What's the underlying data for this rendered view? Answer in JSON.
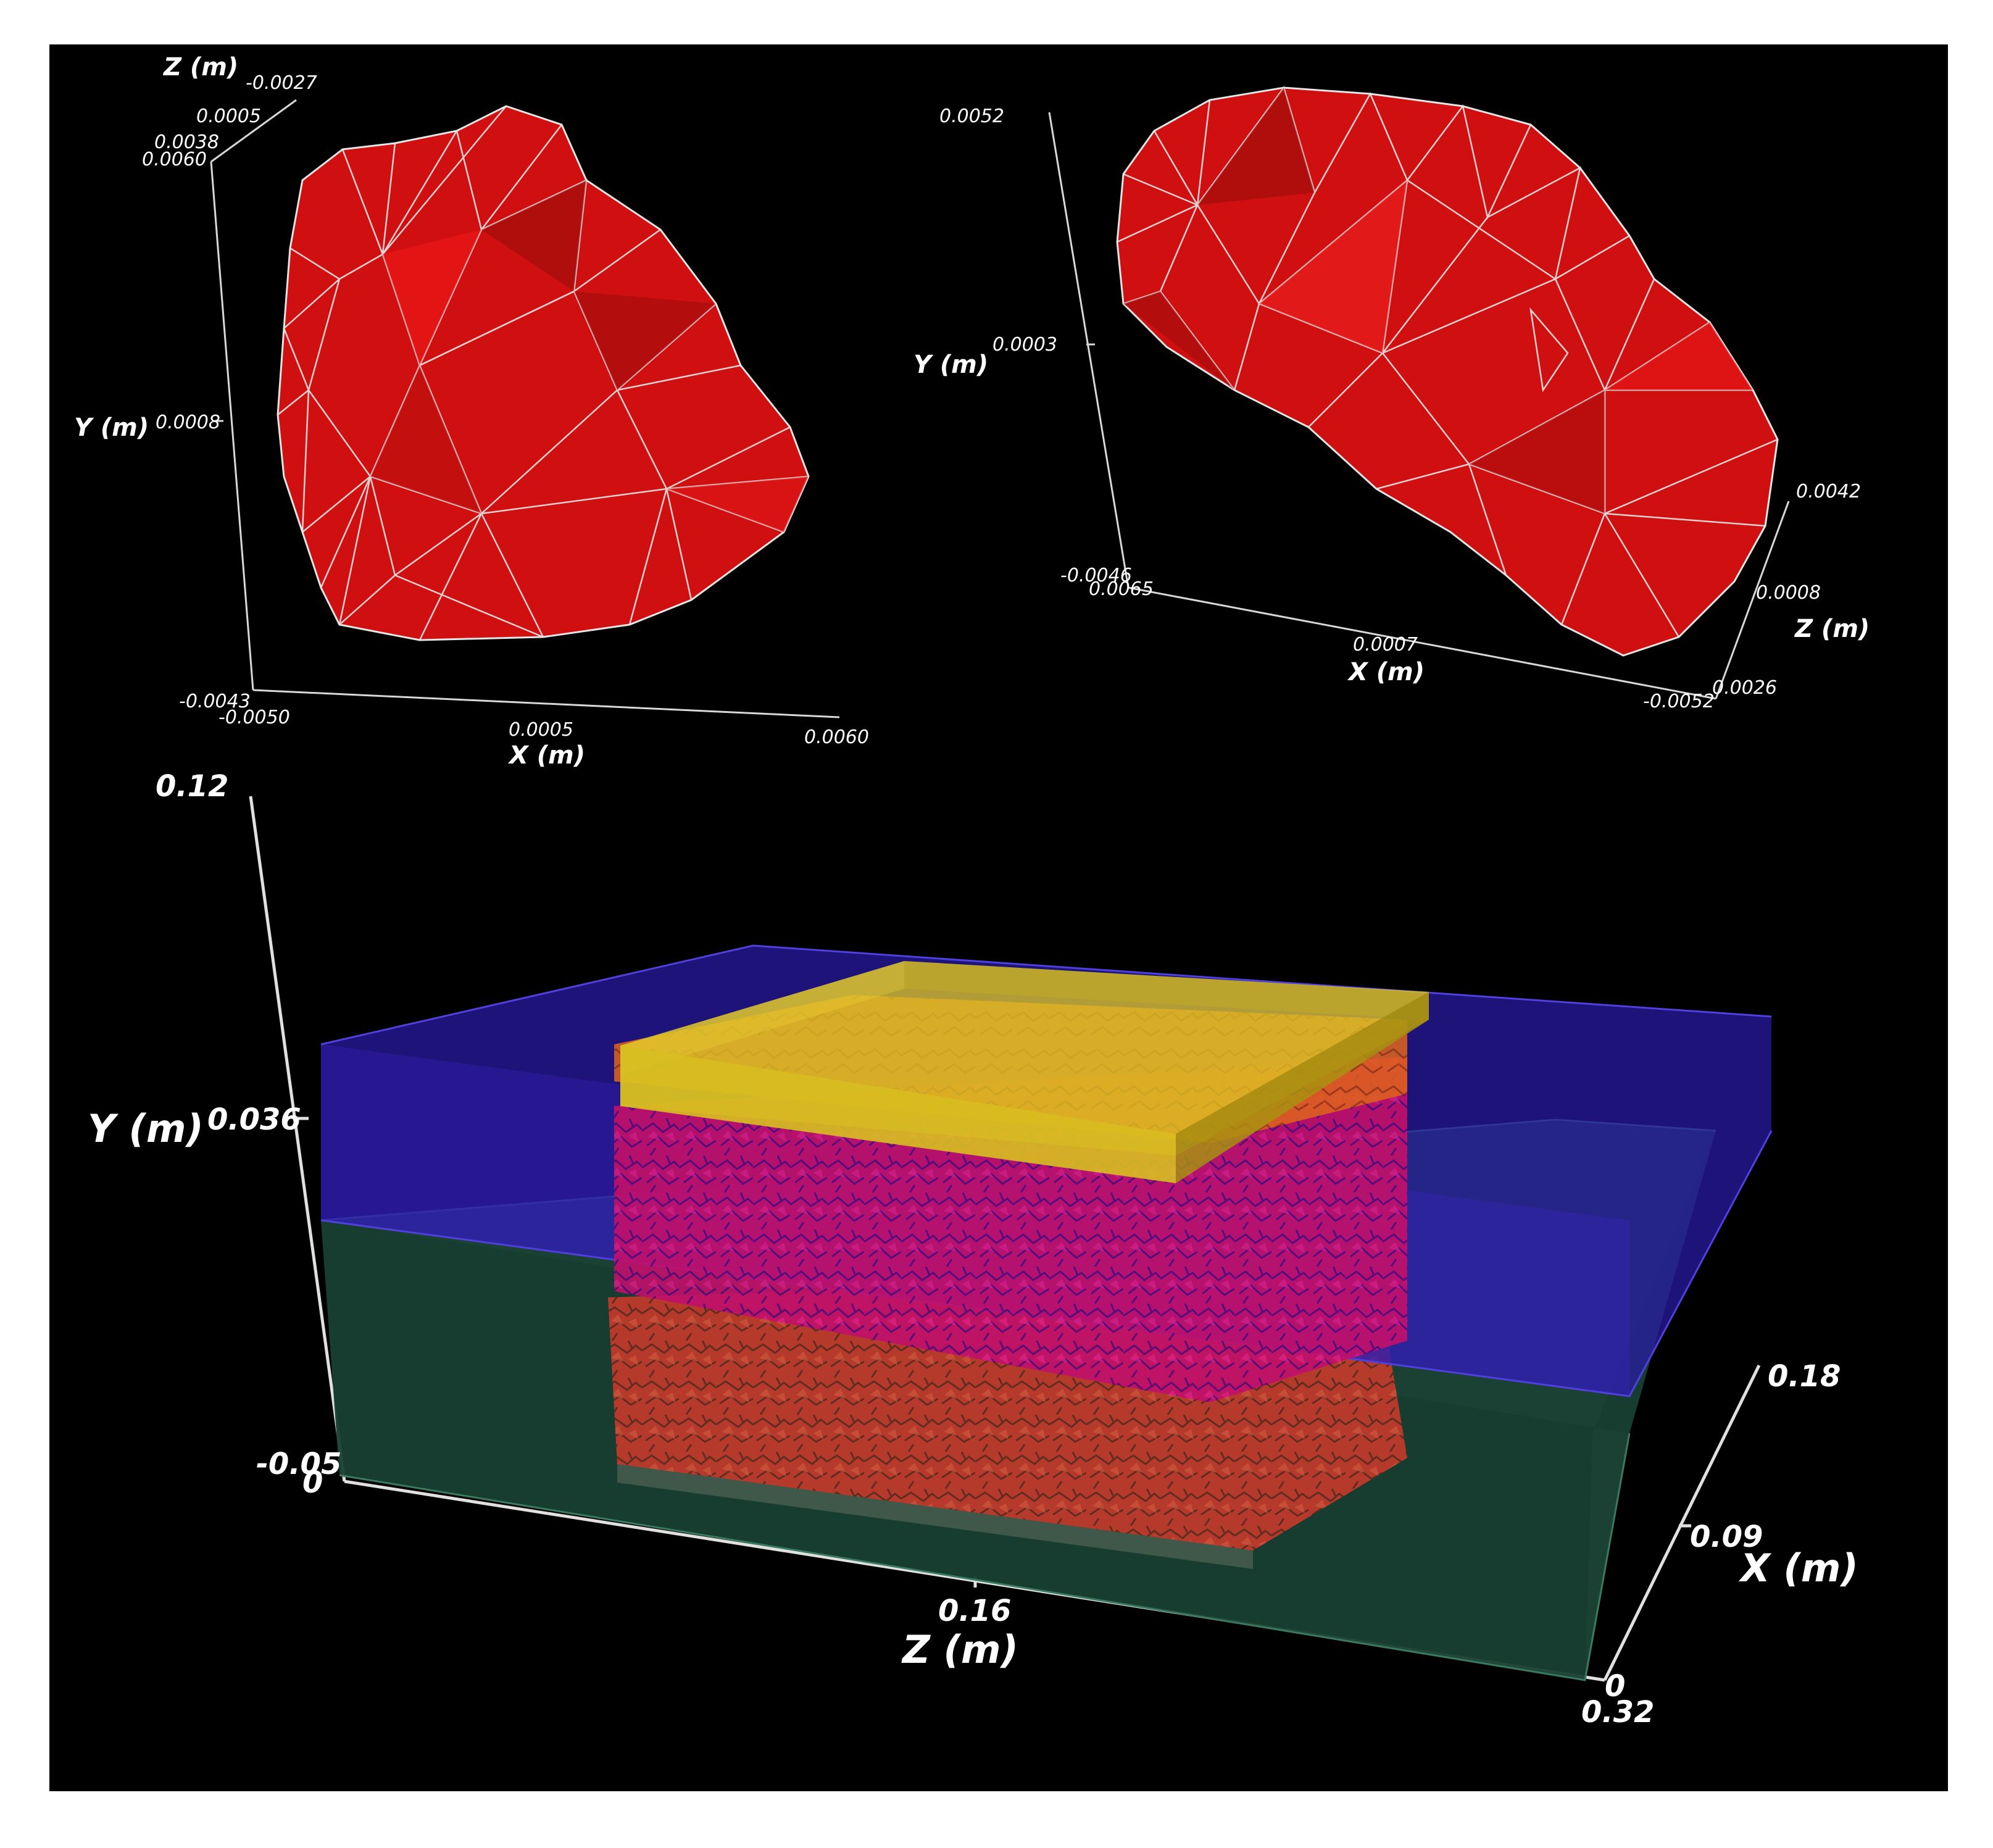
{
  "colors": {
    "background": "#000000",
    "particle_fill": "#d01010",
    "particle_edge": "#e6e6e6",
    "blue_layer": "#2a1aa8",
    "green_layer": "#1e4a3a",
    "yellow_plate": "#d8c020",
    "aggregate_upper": "#c0106a",
    "aggregate_lower": "#d04030"
  },
  "particle_left": {
    "z_title": "Z (m)",
    "z_ticks": [
      "-0.0027",
      "0.0005",
      "0.0038"
    ],
    "y_title": "Y (m)",
    "y_ticks": [
      "0.0060",
      "0.0008",
      "-0.0043"
    ],
    "x_title": "X (m)",
    "x_ticks": [
      "-0.0050",
      "0.0005",
      "0.0060"
    ]
  },
  "particle_right": {
    "y_title": "Y (m)",
    "y_ticks": [
      "0.0052",
      "0.0003",
      "-0.0046"
    ],
    "x_title": "X (m)",
    "x_ticks": [
      "0.0065",
      "0.0007",
      "-0.0052"
    ],
    "z_title": "Z (m)",
    "z_ticks": [
      "0.0042",
      "0.0008",
      "0.0026"
    ]
  },
  "model": {
    "y_title": "Y (m)",
    "y_ticks": [
      "0.12",
      "0.036",
      "-0.05"
    ],
    "z_title": "Z (m)",
    "z_ticks": [
      "0",
      "0.16",
      "0.32"
    ],
    "x_title": "X (m)",
    "x_ticks": [
      "0.18",
      "0.09",
      "0"
    ]
  }
}
